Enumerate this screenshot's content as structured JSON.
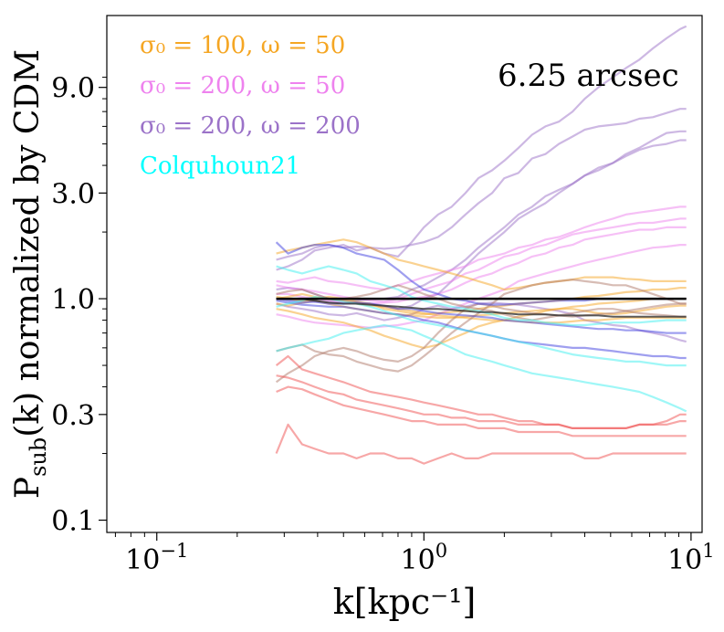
{
  "chart_data": {
    "type": "line",
    "xscale": "log",
    "yscale": "log",
    "xlim": [
      0.065,
      11
    ],
    "ylim": [
      0.088,
      19
    ],
    "xlabel": "k[kpc⁻¹]",
    "ylabel_main": "P",
    "ylabel_sub": "sub",
    "ylabel_rest": "(k) normalized by CDM",
    "xticks": [
      {
        "value": 0.1,
        "base": "10",
        "exp": "−1"
      },
      {
        "value": 1,
        "base": "10",
        "exp": "0"
      },
      {
        "value": 10,
        "base": "10",
        "exp": "1"
      }
    ],
    "yticks": [
      {
        "value": 0.1,
        "label": "0.1"
      },
      {
        "value": 0.3,
        "label": "0.3"
      },
      {
        "value": 1.0,
        "label": "1.0"
      },
      {
        "value": 3.0,
        "label": "3.0"
      },
      {
        "value": 9.0,
        "label": "9.0"
      }
    ],
    "annotation": "6.25 arcsec",
    "grid": false,
    "legend_position": "upper-left",
    "legend": [
      {
        "label": "σ₀ = 100, ω = 50",
        "color": "#f5a623"
      },
      {
        "label": "σ₀ = 200, ω = 50",
        "color": "#ee82ee"
      },
      {
        "label": "σ₀ = 200, ω = 200",
        "color": "#9b72c8"
      },
      {
        "label": "Colquhoun21",
        "color": "#00ffff"
      }
    ],
    "k_values": [
      0.28,
      0.31,
      0.35,
      0.39,
      0.44,
      0.5,
      0.56,
      0.63,
      0.71,
      0.8,
      0.9,
      1.0,
      1.13,
      1.27,
      1.43,
      1.6,
      1.8,
      2.0,
      2.26,
      2.54,
      2.85,
      3.2,
      3.6,
      4.0,
      4.5,
      5.1,
      5.7,
      6.4,
      7.2,
      8.1,
      9.1,
      9.6
    ],
    "series": [
      {
        "group": "purple",
        "color": "#9b72c8",
        "values": [
          1.35,
          1.4,
          1.5,
          1.65,
          1.7,
          1.75,
          1.65,
          1.7,
          1.6,
          1.55,
          1.8,
          2.1,
          2.4,
          2.6,
          3.0,
          3.5,
          3.8,
          4.2,
          4.8,
          5.5,
          6.0,
          6.3,
          7.0,
          8.0,
          9.0,
          10.0,
          11.0,
          12.0,
          13.5,
          15.0,
          16.5,
          17.0
        ]
      },
      {
        "group": "purple",
        "color": "#9b72c8",
        "values": [
          1.5,
          1.55,
          1.6,
          1.7,
          1.75,
          1.7,
          1.72,
          1.7,
          1.68,
          1.7,
          1.75,
          1.8,
          1.9,
          2.1,
          2.4,
          2.7,
          3.0,
          3.5,
          3.7,
          4.3,
          4.5,
          5.0,
          5.4,
          5.8,
          6.0,
          6.1,
          6.2,
          6.5,
          6.6,
          6.9,
          7.2,
          7.2
        ]
      },
      {
        "group": "purple",
        "color": "#9b72c8",
        "values": [
          1.1,
          1.12,
          1.1,
          1.05,
          1.0,
          0.98,
          0.96,
          0.95,
          0.92,
          0.9,
          0.93,
          1.0,
          1.05,
          1.2,
          1.4,
          1.6,
          1.8,
          2.0,
          2.3,
          2.5,
          2.7,
          3.0,
          3.3,
          3.6,
          3.8,
          4.1,
          4.5,
          4.8,
          5.2,
          5.6,
          5.7,
          5.7
        ]
      },
      {
        "group": "purple",
        "color": "#9b72c8",
        "values": [
          1.0,
          1.0,
          0.98,
          0.97,
          0.97,
          0.96,
          0.98,
          1.0,
          1.0,
          1.02,
          1.1,
          1.15,
          1.25,
          1.35,
          1.5,
          1.7,
          1.9,
          2.1,
          2.4,
          2.6,
          2.9,
          3.1,
          3.3,
          3.6,
          3.9,
          4.1,
          4.4,
          4.7,
          4.9,
          5.0,
          5.2,
          5.2
        ]
      },
      {
        "group": "purple",
        "color": "#9b72c8",
        "values": [
          0.95,
          0.92,
          0.9,
          0.88,
          0.85,
          0.84,
          0.86,
          0.83,
          0.8,
          0.82,
          0.85,
          0.9,
          0.93,
          0.9,
          0.92,
          0.95,
          0.96,
          0.95,
          0.94,
          0.92,
          0.9,
          0.88,
          0.85,
          0.8,
          0.78,
          0.76,
          0.75,
          0.72,
          0.7,
          0.68,
          0.65,
          0.64
        ]
      },
      {
        "group": "violet",
        "color": "#ee82ee",
        "values": [
          1.2,
          1.18,
          1.22,
          1.25,
          1.2,
          1.18,
          1.15,
          1.12,
          1.1,
          1.15,
          1.2,
          1.25,
          1.3,
          1.35,
          1.4,
          1.5,
          1.55,
          1.6,
          1.7,
          1.75,
          1.85,
          1.9,
          2.0,
          2.1,
          2.2,
          2.3,
          2.4,
          2.45,
          2.5,
          2.55,
          2.6,
          2.6
        ]
      },
      {
        "group": "violet",
        "color": "#ee82ee",
        "values": [
          1.15,
          1.12,
          1.1,
          1.08,
          1.05,
          1.02,
          1.0,
          0.98,
          0.97,
          1.0,
          1.05,
          1.1,
          1.15,
          1.2,
          1.3,
          1.35,
          1.45,
          1.55,
          1.6,
          1.7,
          1.75,
          1.85,
          1.95,
          2.0,
          2.05,
          2.1,
          2.15,
          2.2,
          2.2,
          2.25,
          2.3,
          2.3
        ]
      },
      {
        "group": "violet",
        "color": "#ee82ee",
        "values": [
          1.05,
          1.05,
          1.02,
          1.0,
          0.98,
          0.96,
          0.95,
          0.95,
          0.96,
          0.97,
          1.0,
          1.02,
          1.05,
          1.1,
          1.18,
          1.25,
          1.3,
          1.38,
          1.45,
          1.55,
          1.6,
          1.7,
          1.75,
          1.85,
          1.9,
          1.95,
          2.0,
          2.05,
          2.05,
          2.1,
          2.1,
          2.1
        ]
      },
      {
        "group": "violet",
        "color": "#ee82ee",
        "values": [
          0.85,
          0.83,
          0.8,
          0.78,
          0.77,
          0.76,
          0.75,
          0.74,
          0.75,
          0.76,
          0.78,
          0.8,
          0.85,
          0.9,
          0.95,
          1.0,
          1.05,
          1.1,
          1.2,
          1.25,
          1.3,
          1.35,
          1.4,
          1.45,
          1.5,
          1.55,
          1.6,
          1.65,
          1.7,
          1.72,
          1.75,
          1.75
        ]
      },
      {
        "group": "orange",
        "color": "#f5a623",
        "values": [
          1.6,
          1.65,
          1.7,
          1.75,
          1.8,
          1.85,
          1.8,
          1.7,
          1.6,
          1.5,
          1.45,
          1.4,
          1.35,
          1.3,
          1.25,
          1.2,
          1.15,
          1.1,
          1.12,
          1.15,
          1.18,
          1.2,
          1.22,
          1.25,
          1.25,
          1.25,
          1.23,
          1.22,
          1.2,
          1.2,
          1.2,
          1.2
        ]
      },
      {
        "group": "orange",
        "color": "#f5a623",
        "values": [
          1.02,
          1.0,
          0.98,
          1.0,
          1.02,
          1.0,
          0.97,
          0.95,
          0.9,
          0.88,
          0.86,
          0.85,
          0.86,
          0.87,
          0.88,
          0.9,
          0.92,
          0.93,
          0.95,
          0.96,
          0.97,
          0.98,
          1.0,
          1.02,
          1.03,
          1.05,
          1.07,
          1.08,
          1.1,
          1.1,
          1.12,
          1.12
        ]
      },
      {
        "group": "orange",
        "color": "#f5a623",
        "values": [
          0.9,
          0.88,
          0.85,
          0.82,
          0.8,
          0.78,
          0.75,
          0.72,
          0.68,
          0.65,
          0.62,
          0.6,
          0.62,
          0.66,
          0.7,
          0.75,
          0.78,
          0.8,
          0.83,
          0.85,
          0.88,
          0.9,
          0.9,
          0.88,
          0.86,
          0.85,
          0.86,
          0.88,
          0.9,
          0.92,
          0.93,
          0.93
        ]
      },
      {
        "group": "orange",
        "color": "#f5a623",
        "values": [
          0.95,
          0.93,
          0.96,
          0.98,
          0.95,
          0.92,
          0.9,
          0.88,
          0.86,
          0.85,
          0.84,
          0.83,
          0.82,
          0.82,
          0.83,
          0.84,
          0.85,
          0.86,
          0.87,
          0.88,
          0.89,
          0.9,
          0.92,
          0.93,
          0.95,
          0.96,
          0.97,
          0.98,
          1.0,
          1.0,
          1.0,
          1.0
        ]
      },
      {
        "group": "orange",
        "color": "#f5a623",
        "values": [
          1.0,
          1.02,
          1.05,
          1.02,
          1.0,
          0.98,
          0.95,
          0.93,
          0.92,
          0.9,
          0.88,
          0.86,
          0.84,
          0.83,
          0.82,
          0.81,
          0.8,
          0.8,
          0.79,
          0.78,
          0.78,
          0.78,
          0.79,
          0.8,
          0.8,
          0.81,
          0.82,
          0.82,
          0.82,
          0.82,
          0.82,
          0.82
        ]
      },
      {
        "group": "brown",
        "color": "#b07a6a",
        "values": [
          0.58,
          0.6,
          0.62,
          0.58,
          0.56,
          0.55,
          0.52,
          0.5,
          0.48,
          0.47,
          0.5,
          0.55,
          0.62,
          0.7,
          0.78,
          0.86,
          0.95,
          1.05,
          1.1,
          1.15,
          1.18,
          1.2,
          1.22,
          1.2,
          1.18,
          1.15,
          1.15,
          1.1,
          1.05,
          1.0,
          0.95,
          0.95
        ]
      },
      {
        "group": "brown",
        "color": "#b07a6a",
        "values": [
          0.42,
          0.46,
          0.5,
          0.55,
          0.58,
          0.6,
          0.58,
          0.55,
          0.53,
          0.52,
          0.55,
          0.6,
          0.7,
          0.8,
          0.9,
          0.95,
          0.93,
          0.9,
          0.88,
          0.86,
          0.85,
          0.84,
          0.83,
          0.84,
          0.85,
          0.86,
          0.88,
          0.9,
          0.92,
          0.94,
          0.95,
          0.95
        ]
      },
      {
        "group": "brown",
        "color": "#b07a6a",
        "values": [
          1.05,
          1.08,
          1.1,
          1.05,
          1.0,
          1.0,
          1.02,
          1.05,
          1.1,
          1.15,
          1.1,
          1.05,
          1.0,
          0.95,
          0.92,
          0.9,
          0.88,
          0.85,
          0.82,
          0.8,
          0.82,
          0.84,
          0.86,
          0.88,
          0.9,
          0.9,
          0.88,
          0.86,
          0.85,
          0.84,
          0.83,
          0.83
        ]
      },
      {
        "group": "blue",
        "color": "#4040e0",
        "values": [
          1.8,
          1.6,
          1.7,
          1.75,
          1.75,
          1.7,
          1.6,
          1.55,
          1.5,
          1.35,
          1.2,
          1.1,
          1.05,
          1.0,
          0.98,
          0.95,
          0.94,
          0.94,
          0.95,
          0.96,
          0.97,
          0.98,
          0.98,
          0.98,
          1.0,
          1.0,
          1.0,
          1.0,
          1.0,
          1.0,
          1.0,
          1.0
        ]
      },
      {
        "group": "blue",
        "color": "#4040e0",
        "values": [
          1.0,
          0.98,
          0.96,
          0.97,
          0.95,
          0.95,
          0.96,
          0.95,
          0.93,
          0.9,
          0.9,
          0.88,
          0.86,
          0.85,
          0.84,
          0.83,
          0.82,
          0.8,
          0.79,
          0.78,
          0.77,
          0.76,
          0.75,
          0.74,
          0.73,
          0.73,
          0.72,
          0.72,
          0.71,
          0.7,
          0.7,
          0.7
        ]
      },
      {
        "group": "blue",
        "color": "#4040e0",
        "values": [
          0.98,
          0.96,
          0.94,
          0.93,
          0.92,
          0.92,
          0.9,
          0.88,
          0.86,
          0.85,
          0.83,
          0.8,
          0.78,
          0.75,
          0.72,
          0.7,
          0.68,
          0.66,
          0.64,
          0.63,
          0.62,
          0.61,
          0.6,
          0.6,
          0.59,
          0.58,
          0.57,
          0.56,
          0.55,
          0.55,
          0.54,
          0.54
        ]
      },
      {
        "group": "cyan",
        "color": "#40f0f0",
        "values": [
          1.4,
          1.35,
          1.3,
          1.35,
          1.4,
          1.35,
          1.3,
          1.2,
          1.15,
          1.1,
          1.02,
          0.98,
          0.95,
          0.92,
          0.9,
          0.88,
          0.85,
          0.82,
          0.8,
          0.8,
          0.78,
          0.77,
          0.76,
          0.76,
          0.77,
          0.78,
          0.78,
          0.78,
          0.79,
          0.8,
          0.8,
          0.8
        ]
      },
      {
        "group": "cyan",
        "color": "#40f0f0",
        "values": [
          0.92,
          0.95,
          0.98,
          1.02,
          1.0,
          0.97,
          0.95,
          0.92,
          0.88,
          0.84,
          0.8,
          0.78,
          0.76,
          0.74,
          0.72,
          0.7,
          0.68,
          0.66,
          0.64,
          0.62,
          0.6,
          0.58,
          0.56,
          0.55,
          0.54,
          0.53,
          0.52,
          0.52,
          0.51,
          0.5,
          0.5,
          0.5
        ]
      },
      {
        "group": "cyan",
        "color": "#40f0f0",
        "values": [
          0.58,
          0.6,
          0.62,
          0.64,
          0.66,
          0.7,
          0.72,
          0.74,
          0.76,
          0.74,
          0.72,
          0.68,
          0.64,
          0.6,
          0.56,
          0.54,
          0.52,
          0.5,
          0.48,
          0.46,
          0.45,
          0.44,
          0.43,
          0.42,
          0.41,
          0.4,
          0.39,
          0.38,
          0.36,
          0.34,
          0.32,
          0.31
        ]
      },
      {
        "group": "red",
        "color": "#f05050",
        "values": [
          0.5,
          0.55,
          0.48,
          0.46,
          0.44,
          0.42,
          0.4,
          0.38,
          0.37,
          0.36,
          0.35,
          0.34,
          0.33,
          0.32,
          0.31,
          0.3,
          0.3,
          0.29,
          0.28,
          0.28,
          0.27,
          0.27,
          0.26,
          0.26,
          0.26,
          0.26,
          0.26,
          0.27,
          0.27,
          0.28,
          0.3,
          0.3
        ]
      },
      {
        "group": "red",
        "color": "#f05050",
        "values": [
          0.45,
          0.44,
          0.42,
          0.4,
          0.38,
          0.37,
          0.35,
          0.34,
          0.33,
          0.32,
          0.31,
          0.3,
          0.3,
          0.29,
          0.29,
          0.28,
          0.28,
          0.28,
          0.27,
          0.27,
          0.27,
          0.27,
          0.26,
          0.26,
          0.26,
          0.26,
          0.26,
          0.27,
          0.27,
          0.27,
          0.28,
          0.28
        ]
      },
      {
        "group": "red",
        "color": "#f05050",
        "values": [
          0.38,
          0.4,
          0.39,
          0.37,
          0.35,
          0.33,
          0.32,
          0.31,
          0.3,
          0.29,
          0.28,
          0.28,
          0.27,
          0.27,
          0.27,
          0.26,
          0.26,
          0.26,
          0.25,
          0.25,
          0.25,
          0.25,
          0.24,
          0.24,
          0.24,
          0.24,
          0.24,
          0.24,
          0.24,
          0.24,
          0.24,
          0.24
        ]
      },
      {
        "group": "red",
        "color": "#f05050",
        "values": [
          0.2,
          0.27,
          0.22,
          0.21,
          0.2,
          0.2,
          0.19,
          0.2,
          0.2,
          0.19,
          0.19,
          0.18,
          0.19,
          0.2,
          0.19,
          0.19,
          0.2,
          0.2,
          0.2,
          0.2,
          0.2,
          0.2,
          0.2,
          0.19,
          0.19,
          0.2,
          0.2,
          0.2,
          0.2,
          0.2,
          0.2,
          0.2
        ]
      }
    ],
    "reference_line": {
      "value": 1.0,
      "color": "#000000"
    },
    "dark_line": {
      "color": "#333333",
      "values": [
        1.0,
        1.0,
        1.0,
        0.98,
        0.96,
        0.95,
        0.95,
        0.94,
        0.93,
        0.92,
        0.91,
        0.9,
        0.9,
        0.89,
        0.88,
        0.87,
        0.87,
        0.86,
        0.85,
        0.85,
        0.85,
        0.84,
        0.84,
        0.84,
        0.84,
        0.83,
        0.83,
        0.83,
        0.83,
        0.83,
        0.83,
        0.83
      ]
    }
  }
}
